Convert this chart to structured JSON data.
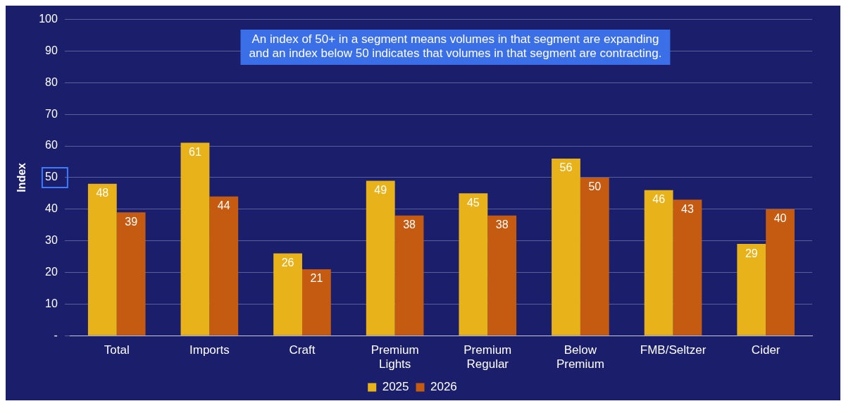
{
  "chart_data": {
    "type": "bar",
    "ylabel": "Index",
    "categories": [
      "Total",
      "Imports",
      "Craft",
      "Premium\nLights",
      "Premium\nRegular",
      "Below\nPremium",
      "FMB/Seltzer",
      "Cider"
    ],
    "series": [
      {
        "name": "2025",
        "color": "#e8b31a",
        "values": [
          48,
          61,
          26,
          49,
          45,
          56,
          46,
          29
        ]
      },
      {
        "name": "2026",
        "color": "#c55a11",
        "values": [
          39,
          44,
          21,
          38,
          38,
          50,
          43,
          40
        ]
      }
    ],
    "ylim": [
      0,
      100
    ],
    "yticks": [
      {
        "value": 0,
        "label": "-"
      },
      10,
      20,
      30,
      40,
      50,
      60,
      70,
      80,
      90,
      100
    ],
    "grid": "y",
    "legend": "bottom",
    "data_labels": true,
    "annotations": [
      "An index of 50+ in a segment means volumes in that segment are expanding\nand an index below 50 indicates that volumes in that segment are contracting."
    ]
  }
}
